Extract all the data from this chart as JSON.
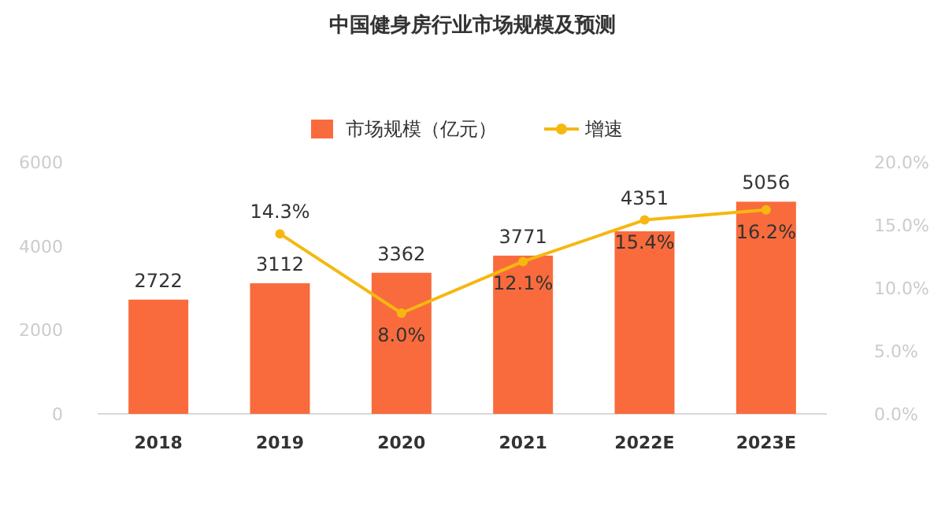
{
  "chart_data": {
    "type": "bar",
    "title": "中国健身房行业市场规模及预测",
    "categories": [
      "2018",
      "2019",
      "2020",
      "2021",
      "2022E",
      "2023E"
    ],
    "series": [
      {
        "name": "市场规模（亿元）",
        "color": "#f96b3d",
        "values": [
          2722,
          3112,
          3362,
          3771,
          4351,
          5056
        ],
        "value_labels": [
          "2722",
          "3112",
          "3362",
          "3771",
          "4351",
          "5056"
        ]
      },
      {
        "name": "增速",
        "type": "line",
        "axis": "y2",
        "color": "#f5b810",
        "marker": "circle",
        "values": [
          null,
          14.3,
          8.0,
          12.1,
          15.4,
          16.2
        ],
        "value_labels": [
          null,
          "14.3%",
          "8.0%",
          "12.1%",
          "15.4%",
          "16.2%"
        ]
      }
    ],
    "ylim": [
      0,
      6000
    ],
    "yticks": [
      0,
      2000,
      4000,
      6000
    ],
    "y2lim": [
      0,
      20
    ],
    "y2ticks": [
      {
        "value": 0,
        "label": "0.0%"
      },
      {
        "value": 5,
        "label": "5.0%"
      },
      {
        "value": 10,
        "label": "10.0%"
      },
      {
        "value": 15,
        "label": "15.0%"
      },
      {
        "value": 20,
        "label": "20.0%"
      }
    ],
    "grid": false,
    "legend": "top"
  }
}
